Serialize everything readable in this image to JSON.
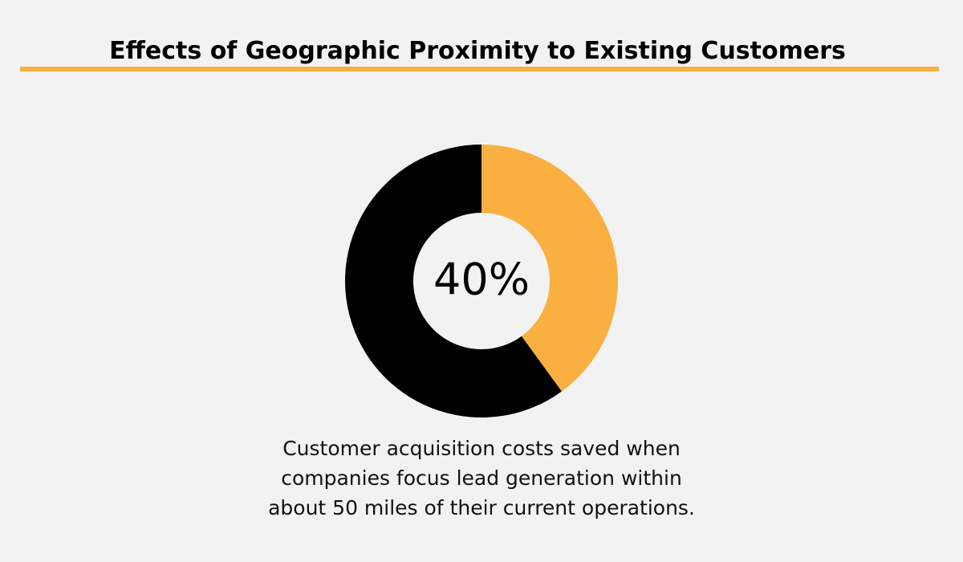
{
  "chart_data": {
    "type": "donut",
    "title": "Effects of Geographic Proximity to Existing Customers",
    "values": [
      40,
      60
    ],
    "value_labels": [
      "40%",
      null
    ],
    "colors": [
      "#f9b041",
      "#000000"
    ],
    "caption": [
      "Customer acquisition costs saved when",
      "companies focus lead generation within",
      "about 50 miles of their current operations."
    ]
  }
}
